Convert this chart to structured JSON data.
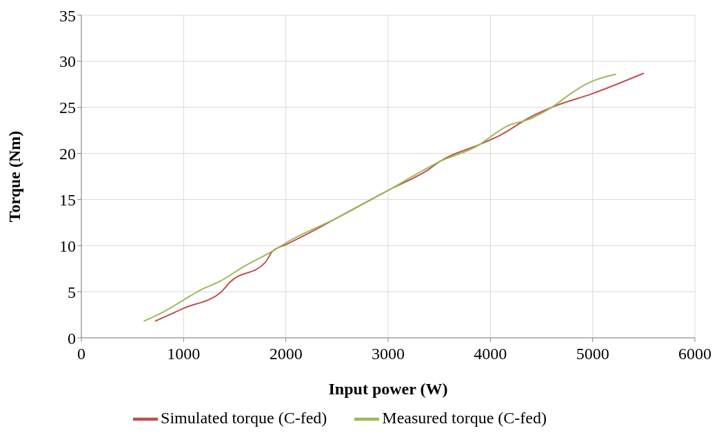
{
  "chart_data": {
    "type": "line",
    "xlabel": "Input power (W)",
    "ylabel": "Torque (Nm)",
    "xlim": [
      0,
      6000
    ],
    "xticks": [
      0,
      1000,
      2000,
      3000,
      4000,
      5000,
      6000
    ],
    "ylim": [
      0,
      35
    ],
    "yticks": [
      0,
      5,
      10,
      15,
      20,
      25,
      30,
      35
    ],
    "grid": true,
    "legend": "bottom",
    "marker": "none",
    "line_style": "solid",
    "series": [
      {
        "name": "Simulated torque (C-fed)",
        "color": "#c0504d",
        "x": [
          720,
          1000,
          1370,
          1450,
          1800,
          1870,
          2000,
          2250,
          2500,
          3000,
          3400,
          3500,
          3900,
          4100,
          4400,
          4600,
          5000,
          5500
        ],
        "values": [
          1.8,
          3.2,
          5.0,
          6.0,
          8.2,
          9.4,
          10.1,
          11.5,
          13,
          16,
          18.3,
          19.1,
          21,
          22,
          24,
          25,
          26.5,
          28.7
        ]
      },
      {
        "name": "Measured torque (C-fed)",
        "color": "#9bbb59",
        "x": [
          610,
          800,
          1000,
          1150,
          1350,
          1600,
          1900,
          2000,
          2500,
          3000,
          3500,
          3900,
          4000,
          4150,
          4400,
          4600,
          4800,
          4950,
          5230
        ],
        "values": [
          1.8,
          2.8,
          4.1,
          5.1,
          6.1,
          7.8,
          9.6,
          10.3,
          13,
          16,
          19.1,
          21,
          21.8,
          22.9,
          23.8,
          25,
          26.6,
          27.6,
          28.6
        ]
      }
    ]
  }
}
